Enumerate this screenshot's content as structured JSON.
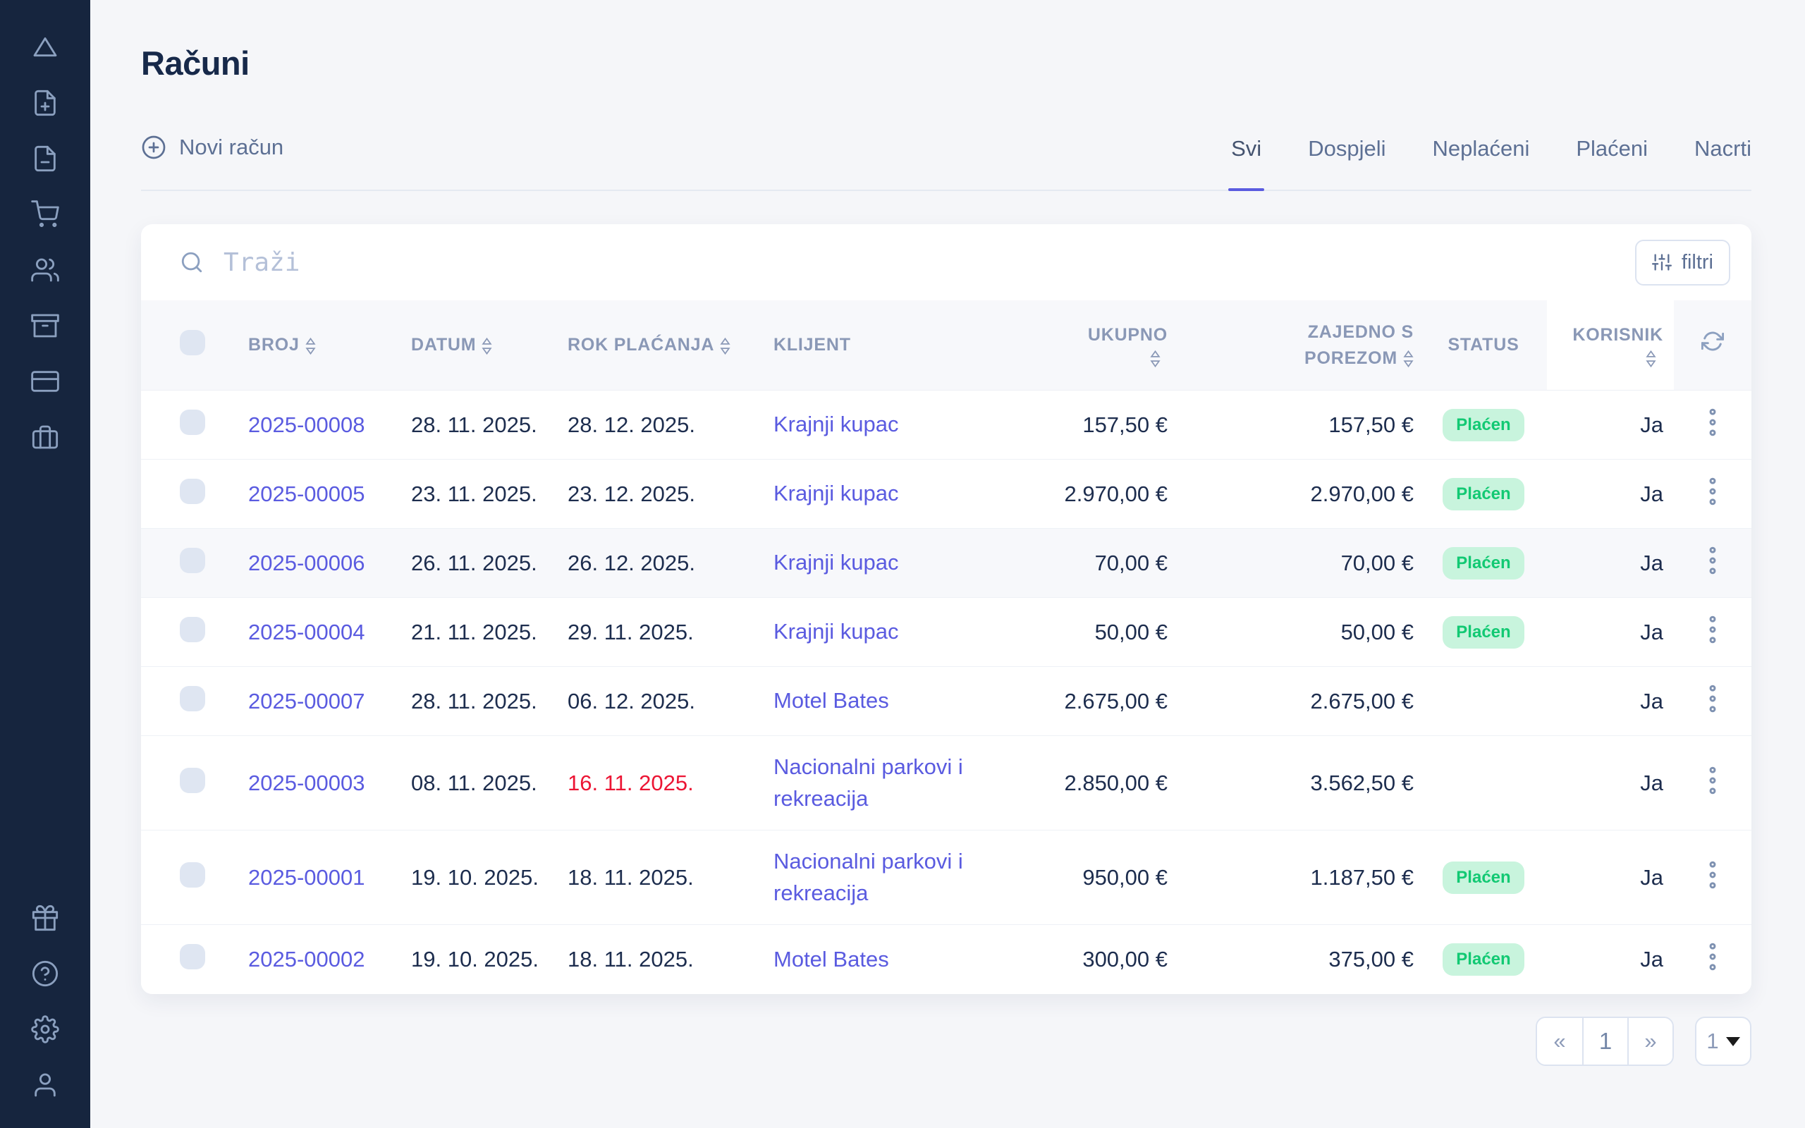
{
  "header": {
    "title": "Računi"
  },
  "sidebar": {
    "items": [
      "logo-triangle-icon",
      "file-plus-icon",
      "file-minus-icon",
      "cart-icon",
      "users-icon",
      "archive-icon",
      "credit-card-icon",
      "briefcase-icon",
      "gift-icon",
      "help-icon",
      "settings-icon",
      "user-icon"
    ]
  },
  "toolbar": {
    "new_invoice_label": "Novi račun",
    "filters_label": "filtri"
  },
  "tabs": [
    {
      "label": "Svi",
      "active": true
    },
    {
      "label": "Dospjeli",
      "active": false
    },
    {
      "label": "Neplaćeni",
      "active": false
    },
    {
      "label": "Plaćeni",
      "active": false
    },
    {
      "label": "Nacrti",
      "active": false
    }
  ],
  "search": {
    "placeholder": "Traži"
  },
  "table": {
    "columns": {
      "broj": "BROJ",
      "datum": "DATUM",
      "rok": "ROK PLAĆANJA",
      "klijent": "KLIJENT",
      "ukupno": "UKUPNO",
      "zajedno": "ZAJEDNO S POREZOM",
      "status": "STATUS",
      "korisnik": "KORISNIK"
    },
    "rows": [
      {
        "broj": "2025-00008",
        "datum": "28. 11. 2025.",
        "rok": "28. 12. 2025.",
        "overdue": false,
        "klijent": "Krajnji kupac",
        "ukupno": "157,50 €",
        "zajedno": "157,50 €",
        "status": "Plaćen",
        "korisnik": "Ja",
        "highlighted": false,
        "tall": false
      },
      {
        "broj": "2025-00005",
        "datum": "23. 11. 2025.",
        "rok": "23. 12. 2025.",
        "overdue": false,
        "klijent": "Krajnji kupac",
        "ukupno": "2.970,00 €",
        "zajedno": "2.970,00 €",
        "status": "Plaćen",
        "korisnik": "Ja",
        "highlighted": false,
        "tall": false
      },
      {
        "broj": "2025-00006",
        "datum": "26. 11. 2025.",
        "rok": "26. 12. 2025.",
        "overdue": false,
        "klijent": "Krajnji kupac",
        "ukupno": "70,00 €",
        "zajedno": "70,00 €",
        "status": "Plaćen",
        "korisnik": "Ja",
        "highlighted": true,
        "tall": false
      },
      {
        "broj": "2025-00004",
        "datum": "21. 11. 2025.",
        "rok": "29. 11. 2025.",
        "overdue": false,
        "klijent": "Krajnji kupac",
        "ukupno": "50,00 €",
        "zajedno": "50,00 €",
        "status": "Plaćen",
        "korisnik": "Ja",
        "highlighted": false,
        "tall": false
      },
      {
        "broj": "2025-00007",
        "datum": "28. 11. 2025.",
        "rok": "06. 12. 2025.",
        "overdue": false,
        "klijent": "Motel Bates",
        "ukupno": "2.675,00 €",
        "zajedno": "2.675,00 €",
        "status": "",
        "korisnik": "Ja",
        "highlighted": false,
        "tall": false
      },
      {
        "broj": "2025-00003",
        "datum": "08. 11. 2025.",
        "rok": "16. 11. 2025.",
        "overdue": true,
        "klijent": "Nacionalni parkovi i rekreacija",
        "ukupno": "2.850,00 €",
        "zajedno": "3.562,50 €",
        "status": "",
        "korisnik": "Ja",
        "highlighted": false,
        "tall": true
      },
      {
        "broj": "2025-00001",
        "datum": "19. 10. 2025.",
        "rok": "18. 11. 2025.",
        "overdue": false,
        "klijent": "Nacionalni parkovi i rekreacija",
        "ukupno": "950,00 €",
        "zajedno": "1.187,50 €",
        "status": "Plaćen",
        "korisnik": "Ja",
        "highlighted": false,
        "tall": true
      },
      {
        "broj": "2025-00002",
        "datum": "19. 10. 2025.",
        "rok": "18. 11. 2025.",
        "overdue": false,
        "klijent": "Motel Bates",
        "ukupno": "300,00 €",
        "zajedno": "375,00 €",
        "status": "Plaćen",
        "korisnik": "Ja",
        "highlighted": false,
        "tall": false
      }
    ]
  },
  "pagination": {
    "first": "«",
    "page": "1",
    "last": "»",
    "page_size": "1"
  },
  "colors": {
    "sidebar_bg": "#16253E",
    "accent_indigo": "#5A5BE0",
    "badge_bg": "#C8F4DD",
    "badge_text": "#12C973",
    "overdue_red": "#EC1534",
    "thead_bg": "#F7F8FB"
  }
}
